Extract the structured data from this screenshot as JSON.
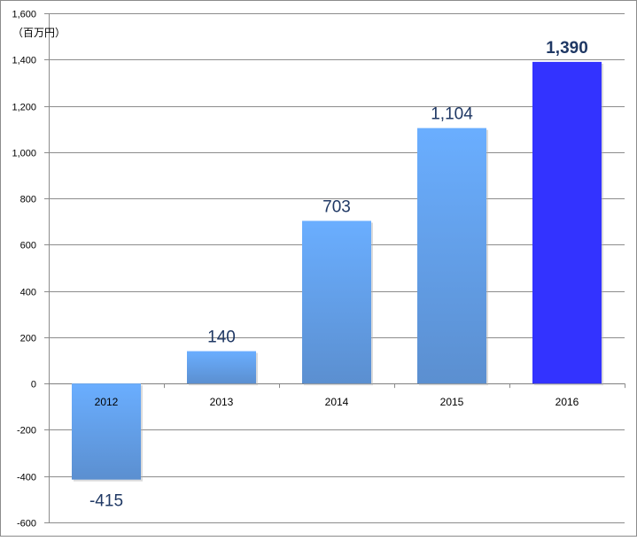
{
  "chart_data": {
    "type": "bar",
    "unit": "（百万円）",
    "categories": [
      "2012",
      "2013",
      "2014",
      "2015",
      "2016"
    ],
    "values": [
      -415,
      140,
      703,
      1104,
      1390
    ],
    "data_labels": [
      "-415",
      "140",
      "703",
      "1,104",
      "1,390"
    ],
    "highlight_index": 4,
    "ylim": [
      -600,
      1600
    ],
    "yticks": [
      {
        "value": 1600,
        "label": "1,600"
      },
      {
        "value": 1400,
        "label": "1,400"
      },
      {
        "value": 1200,
        "label": "1,200"
      },
      {
        "value": 1000,
        "label": "1,000"
      },
      {
        "value": 800,
        "label": "800"
      },
      {
        "value": 600,
        "label": "600"
      },
      {
        "value": 400,
        "label": "400"
      },
      {
        "value": 200,
        "label": "200"
      },
      {
        "value": 0,
        "label": "0"
      },
      {
        "value": -200,
        "label": "-200"
      },
      {
        "value": -400,
        "label": "-400"
      },
      {
        "value": -600,
        "label": "-600"
      }
    ],
    "grid": true,
    "colors": {
      "bar_top": "#6aaeff",
      "bar_bottom": "#5b8fd0",
      "bar_highlight": "#3333ff",
      "negative_tick": "#cc0000",
      "grid": "#8c8c8c"
    }
  }
}
